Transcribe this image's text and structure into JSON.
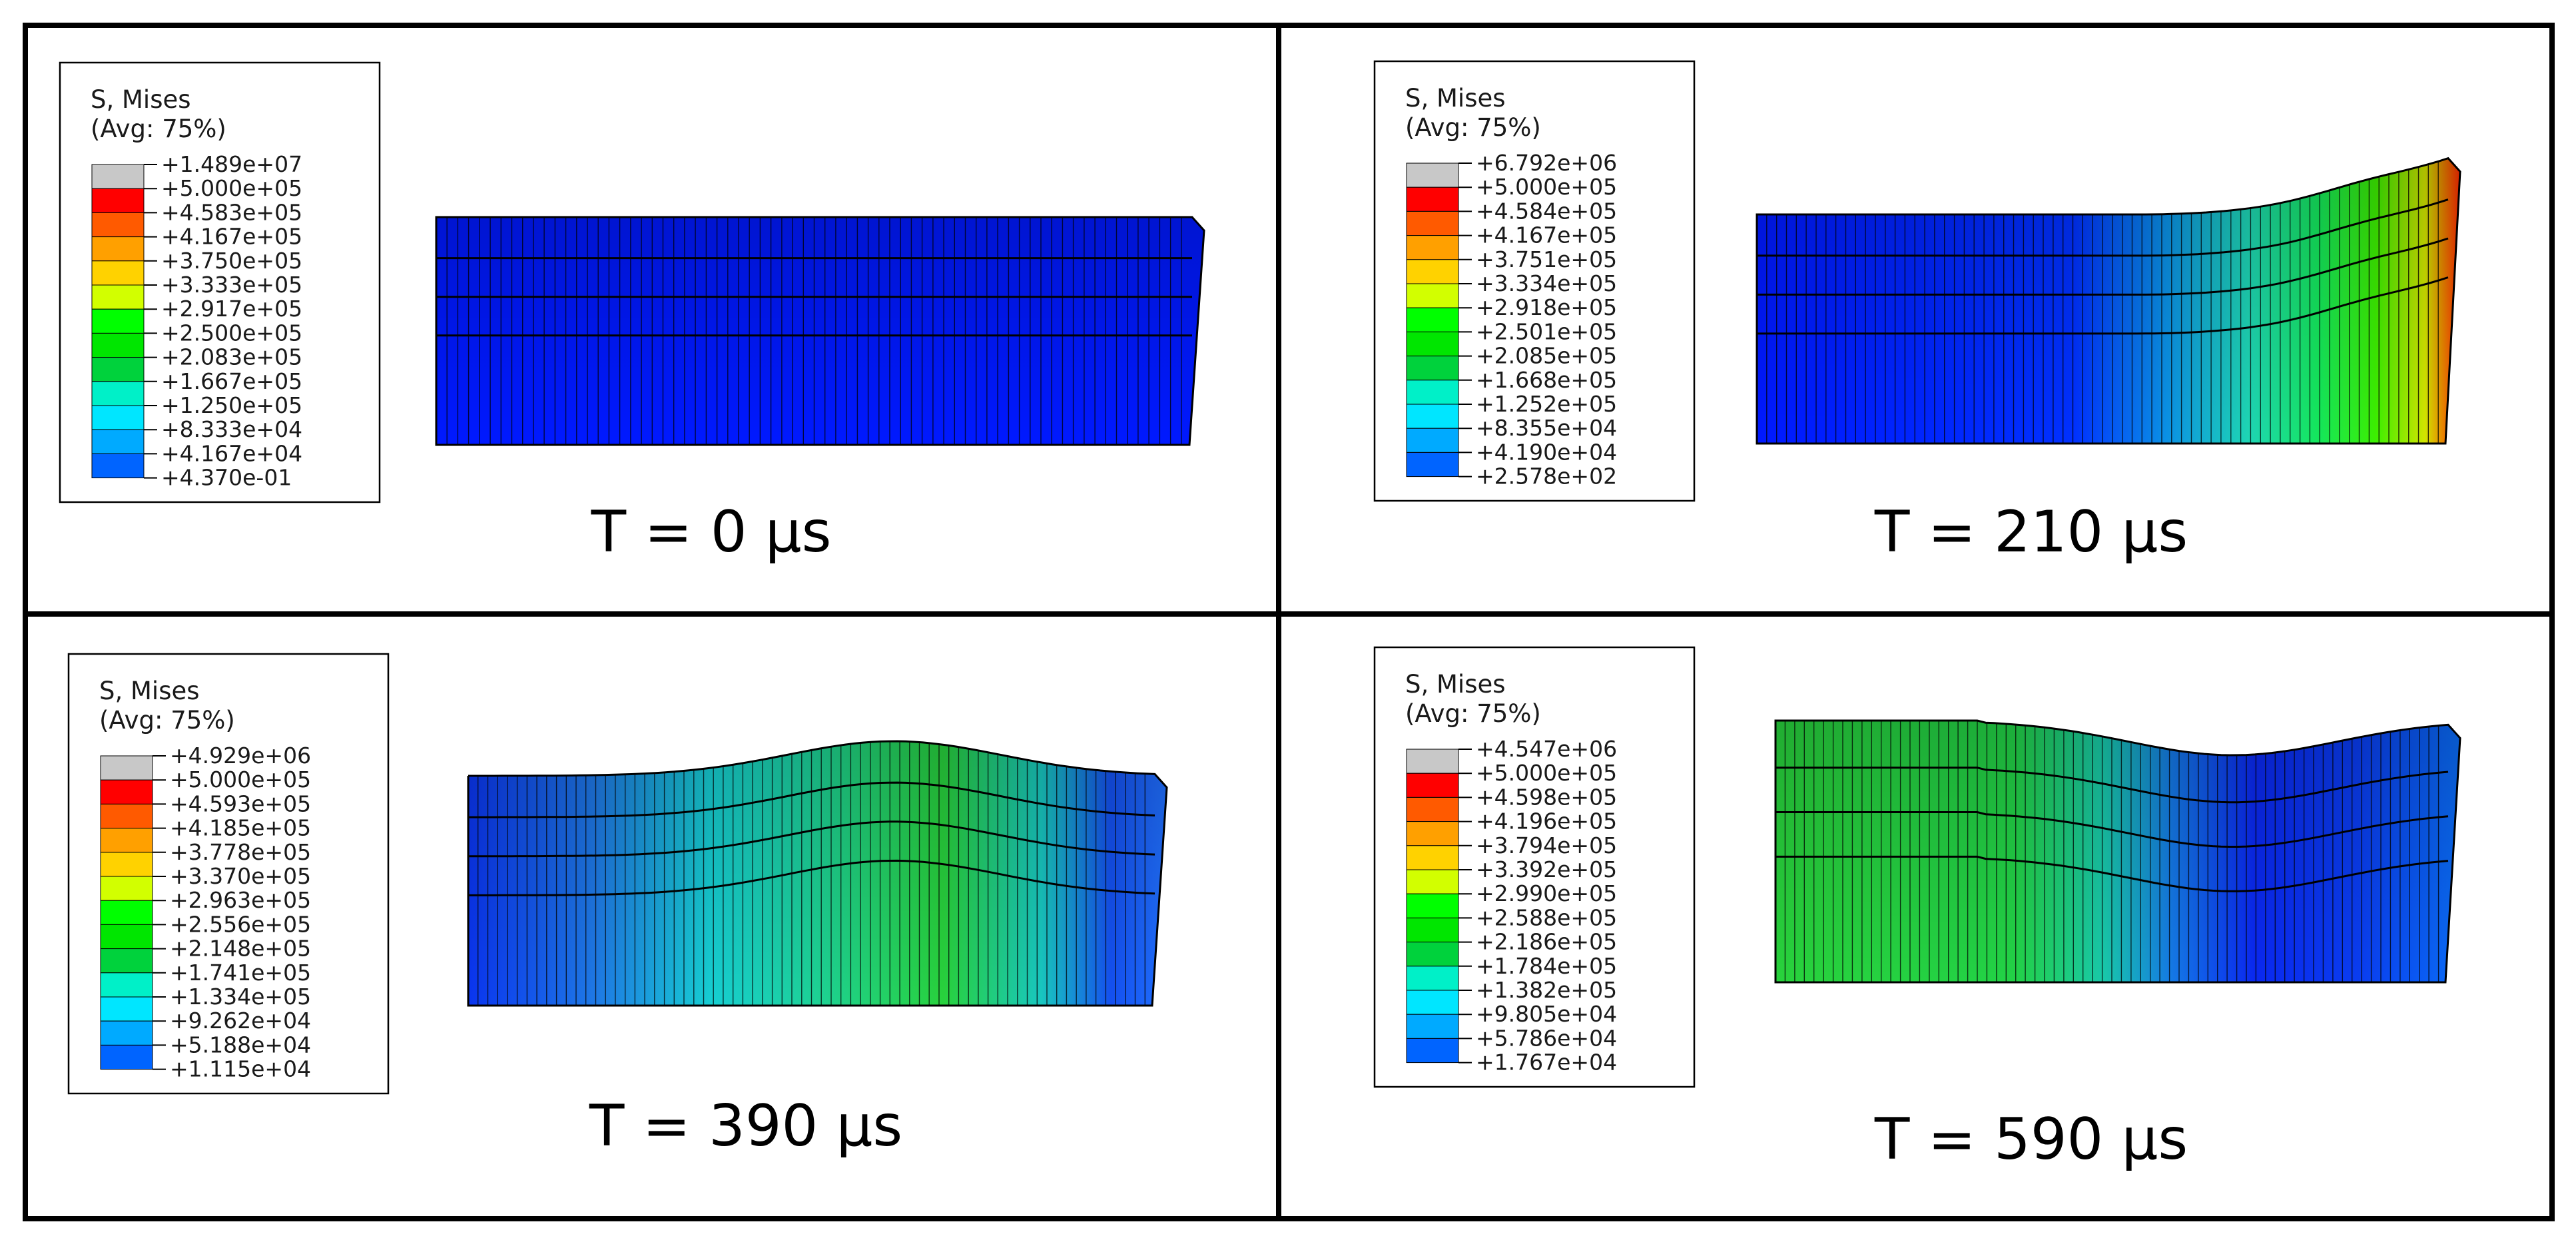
{
  "colors": {
    "scale": [
      "#0019ff",
      "#005dff",
      "#00a3ff",
      "#00e6ff",
      "#00ffc8",
      "#00ff84",
      "#00ff3c",
      "#00ff00",
      "#44ff00",
      "#8cff00",
      "#d2ff00",
      "#ffe600",
      "#ffa000",
      "#ff5a00",
      "#ff0000",
      "#c8c8c8"
    ],
    "mesh_line": "#000000",
    "frame": "#000000"
  },
  "panels": [
    {
      "caption": "T = 0 µs",
      "legend": {
        "title": "S, Mises",
        "subtitle": "(Avg: 75%)",
        "labels": [
          "+1.489e+07",
          "+5.000e+05",
          "+4.583e+05",
          "+4.167e+05",
          "+3.750e+05",
          "+3.333e+05",
          "+2.917e+05",
          "+2.500e+05",
          "+2.083e+05",
          "+1.667e+05",
          "+1.250e+05",
          "+8.333e+04",
          "+4.167e+04",
          "+4.370e-01"
        ]
      }
    },
    {
      "caption": "T = 210 µs",
      "legend": {
        "title": "S, Mises",
        "subtitle": "(Avg: 75%)",
        "labels": [
          "+6.792e+06",
          "+5.000e+05",
          "+4.584e+05",
          "+4.167e+05",
          "+3.751e+05",
          "+3.334e+05",
          "+2.918e+05",
          "+2.501e+05",
          "+2.085e+05",
          "+1.668e+05",
          "+1.252e+05",
          "+8.355e+04",
          "+4.190e+04",
          "+2.578e+02"
        ]
      }
    },
    {
      "caption": "T = 390 µs",
      "legend": {
        "title": "S, Mises",
        "subtitle": "(Avg: 75%)",
        "labels": [
          "+4.929e+06",
          "+5.000e+05",
          "+4.593e+05",
          "+4.185e+05",
          "+3.778e+05",
          "+3.370e+05",
          "+2.963e+05",
          "+2.556e+05",
          "+2.148e+05",
          "+1.741e+05",
          "+1.334e+05",
          "+9.262e+04",
          "+5.188e+04",
          "+1.115e+04"
        ]
      }
    },
    {
      "caption": "T = 590 µs",
      "legend": {
        "title": "S, Mises",
        "subtitle": "(Avg: 75%)",
        "labels": [
          "+4.547e+06",
          "+5.000e+05",
          "+4.598e+05",
          "+4.196e+05",
          "+3.794e+05",
          "+3.392e+05",
          "+2.990e+05",
          "+2.588e+05",
          "+2.186e+05",
          "+1.784e+05",
          "+1.382e+05",
          "+9.805e+04",
          "+5.786e+04",
          "+1.767e+04"
        ]
      }
    }
  ]
}
